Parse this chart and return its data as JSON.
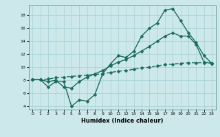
{
  "title": "",
  "xlabel": "Humidex (Indice chaleur)",
  "ylabel": "",
  "bg_color": "#cce8eb",
  "line_color": "#1a6b5a",
  "grid_color": "#aad4d8",
  "xlim": [
    -0.5,
    23.5
  ],
  "ylim": [
    3.5,
    19.5
  ],
  "xticks": [
    0,
    1,
    2,
    3,
    4,
    5,
    6,
    7,
    8,
    9,
    10,
    11,
    12,
    13,
    14,
    15,
    16,
    17,
    18,
    19,
    20,
    21,
    22,
    23
  ],
  "yticks": [
    4,
    6,
    8,
    10,
    12,
    14,
    16,
    18
  ],
  "line1_x": [
    0,
    1,
    2,
    3,
    4,
    5,
    6,
    7,
    8,
    9,
    10,
    11,
    12,
    13,
    14,
    15,
    16,
    17,
    18,
    19,
    20,
    21,
    22,
    23
  ],
  "line1_y": [
    8.1,
    8.1,
    7.0,
    7.8,
    7.8,
    4.0,
    5.0,
    4.8,
    5.8,
    9.0,
    10.5,
    11.8,
    11.5,
    12.5,
    14.8,
    16.0,
    16.8,
    18.8,
    19.0,
    17.2,
    15.3,
    13.8,
    11.8,
    10.6
  ],
  "line2_x": [
    0,
    1,
    2,
    3,
    4,
    5,
    6,
    7,
    8,
    9,
    10,
    11,
    12,
    13,
    14,
    15,
    16,
    17,
    18,
    19,
    20,
    21,
    22,
    23
  ],
  "line2_y": [
    8.1,
    8.1,
    7.8,
    8.0,
    7.0,
    6.8,
    7.8,
    8.5,
    9.0,
    9.5,
    10.2,
    10.8,
    11.2,
    11.8,
    12.5,
    13.2,
    14.0,
    14.8,
    15.3,
    14.8,
    14.8,
    13.5,
    10.8,
    10.6
  ],
  "line3_x": [
    0,
    1,
    2,
    3,
    4,
    5,
    6,
    7,
    8,
    9,
    10,
    11,
    12,
    13,
    14,
    15,
    16,
    17,
    18,
    19,
    20,
    21,
    22,
    23
  ],
  "line3_y": [
    8.1,
    8.1,
    8.2,
    8.4,
    8.5,
    8.6,
    8.7,
    8.8,
    8.9,
    9.0,
    9.2,
    9.4,
    9.5,
    9.7,
    9.9,
    10.0,
    10.2,
    10.4,
    10.5,
    10.6,
    10.7,
    10.7,
    10.7,
    10.7
  ],
  "xlabel_fontsize": 6,
  "tick_fontsize": 4.5,
  "marker_size": 2.5,
  "line_width": 1.0
}
